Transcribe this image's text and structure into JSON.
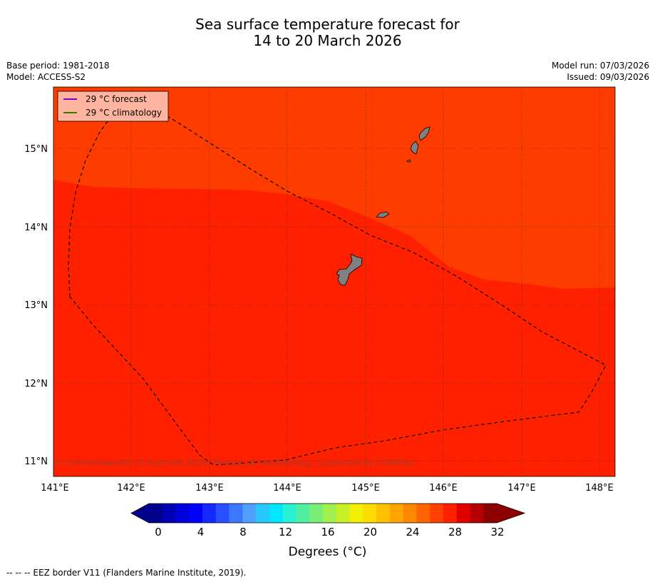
{
  "title_line1": "Sea surface temperature forecast for",
  "title_line2": "14 to 20 March 2026",
  "base_period": "Base period: 1981-2018",
  "model": "Model: ACCESS-S2",
  "model_run": "Model run: 07/03/2026",
  "issued": "Issued: 09/03/2026",
  "legend": {
    "forecast_label": "29 °C  forecast",
    "climatology_label": "29 °C  climatology",
    "forecast_color": "#7b00c8",
    "climatology_color": "#2e7d00"
  },
  "copyright": "© Commonwealth of Australia 2026, Bureau of Meteorology, supported by COSPPac",
  "footer": "--  --  -- EEZ border V11 (Flanders Marine Institute, 2019).",
  "colorbar": {
    "label": "Degrees (°C)",
    "ticks": [
      "0",
      "4",
      "8",
      "12",
      "16",
      "20",
      "24",
      "28",
      "32"
    ],
    "colors": [
      "#00008c",
      "#0000b4",
      "#0000dc",
      "#0000ff",
      "#1428ff",
      "#2850ff",
      "#3c78ff",
      "#50a0ff",
      "#28c8ff",
      "#00e6ff",
      "#28f0d2",
      "#50f0a0",
      "#78f078",
      "#a0f050",
      "#c8f028",
      "#f0f000",
      "#ffdc00",
      "#ffc000",
      "#ffa400",
      "#ff8800",
      "#ff6400",
      "#ff4000",
      "#ff2000",
      "#e00000",
      "#b40000",
      "#8c0000"
    ],
    "under_color": "#00008c",
    "over_color": "#8c0000"
  },
  "map": {
    "lon_labels": [
      "141°E",
      "142°E",
      "143°E",
      "144°E",
      "145°E",
      "146°E",
      "147°E",
      "148°E"
    ],
    "lat_labels": [
      "15°N",
      "14°N",
      "13°N",
      "12°N",
      "11°N"
    ],
    "lon_range": [
      141.0,
      148.2
    ],
    "lat_range": [
      10.8,
      15.8
    ],
    "region_colors": {
      "warm": "#ff3c00",
      "warmer": "#ff2000"
    },
    "land_color": "#808080"
  }
}
